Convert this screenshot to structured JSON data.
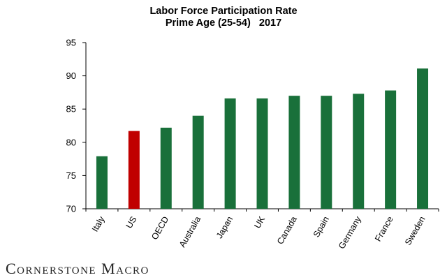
{
  "chart_data": {
    "type": "bar",
    "title": "Labor Force Participation Rate",
    "subtitle": "Prime Age (25-54)   2017",
    "categories": [
      "Italy",
      "US",
      "OECD",
      "Australia",
      "Japan",
      "UK",
      "Canada",
      "Spain",
      "Germany",
      "France",
      "Sweden"
    ],
    "values": [
      77.9,
      81.7,
      82.2,
      84.0,
      86.6,
      86.6,
      87.0,
      87.0,
      87.3,
      87.8,
      91.1
    ],
    "highlight_category": "US",
    "colors": {
      "bar": "#19703a",
      "highlight": "#c00000",
      "axis": "#000000"
    },
    "ylim": [
      70,
      95
    ],
    "yticks": [
      70,
      75,
      80,
      85,
      90,
      95
    ],
    "xlabel": "",
    "ylabel": "",
    "grid": false,
    "legend": "none"
  },
  "footer": {
    "brand": "Cornerstone Macro"
  }
}
